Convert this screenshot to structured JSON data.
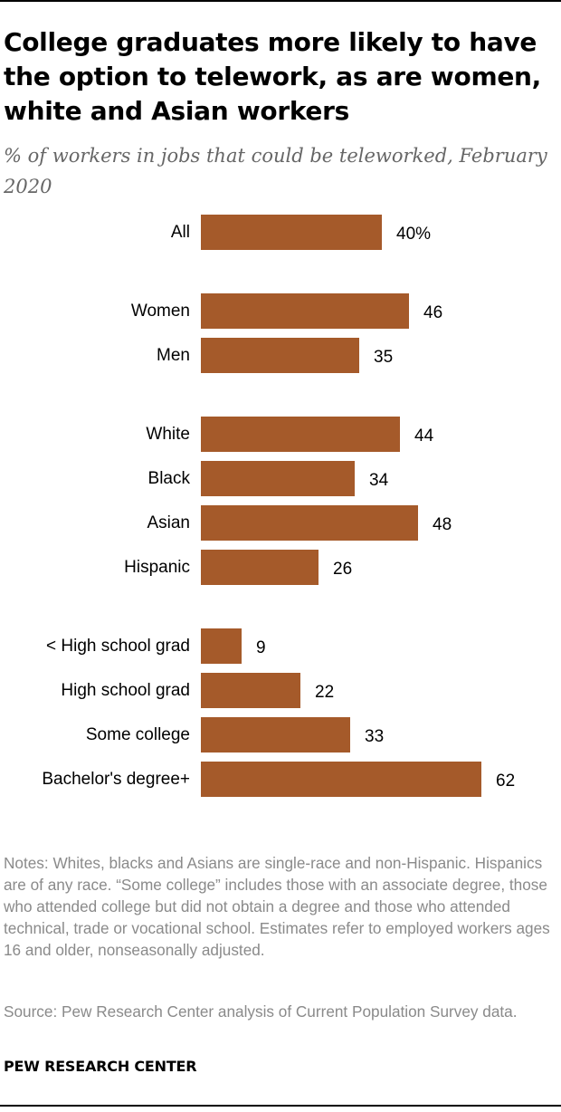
{
  "title": "College graduates more likely to have the option to telework, as are women, white and Asian workers",
  "subtitle": "% of workers in jobs that could be teleworked, February 2020",
  "notes": "Notes: Whites, blacks and Asians are single-race and non-Hispanic. Hispanics are of any race. “Some college” includes those with an associate degree, those who attended college but did not obtain a degree and those who attended technical, trade or vocational school. Estimates refer to employed workers ages 16 and older, nonseasonally adjusted.",
  "source": "Source: Pew Research Center analysis of Current Population Survey data.",
  "org": "PEW RESEARCH CENTER",
  "chart_data": {
    "type": "bar",
    "orientation": "horizontal",
    "bar_color": "#a55a2a",
    "groups": [
      {
        "categories": [
          "All"
        ],
        "values": [
          40
        ],
        "labels": [
          "40%"
        ]
      },
      {
        "categories": [
          "Women",
          "Men"
        ],
        "values": [
          46,
          35
        ],
        "labels": [
          "46",
          "35"
        ]
      },
      {
        "categories": [
          "White",
          "Black",
          "Asian",
          "Hispanic"
        ],
        "values": [
          44,
          34,
          48,
          26
        ],
        "labels": [
          "44",
          "34",
          "48",
          "26"
        ]
      },
      {
        "categories": [
          "< High school grad",
          "High school grad",
          "Some college",
          "Bachelor's degree+"
        ],
        "values": [
          9,
          22,
          33,
          62
        ],
        "labels": [
          "9",
          "22",
          "33",
          "62"
        ]
      }
    ],
    "xlim": [
      0,
      62
    ],
    "grid": false,
    "legend": "none"
  }
}
